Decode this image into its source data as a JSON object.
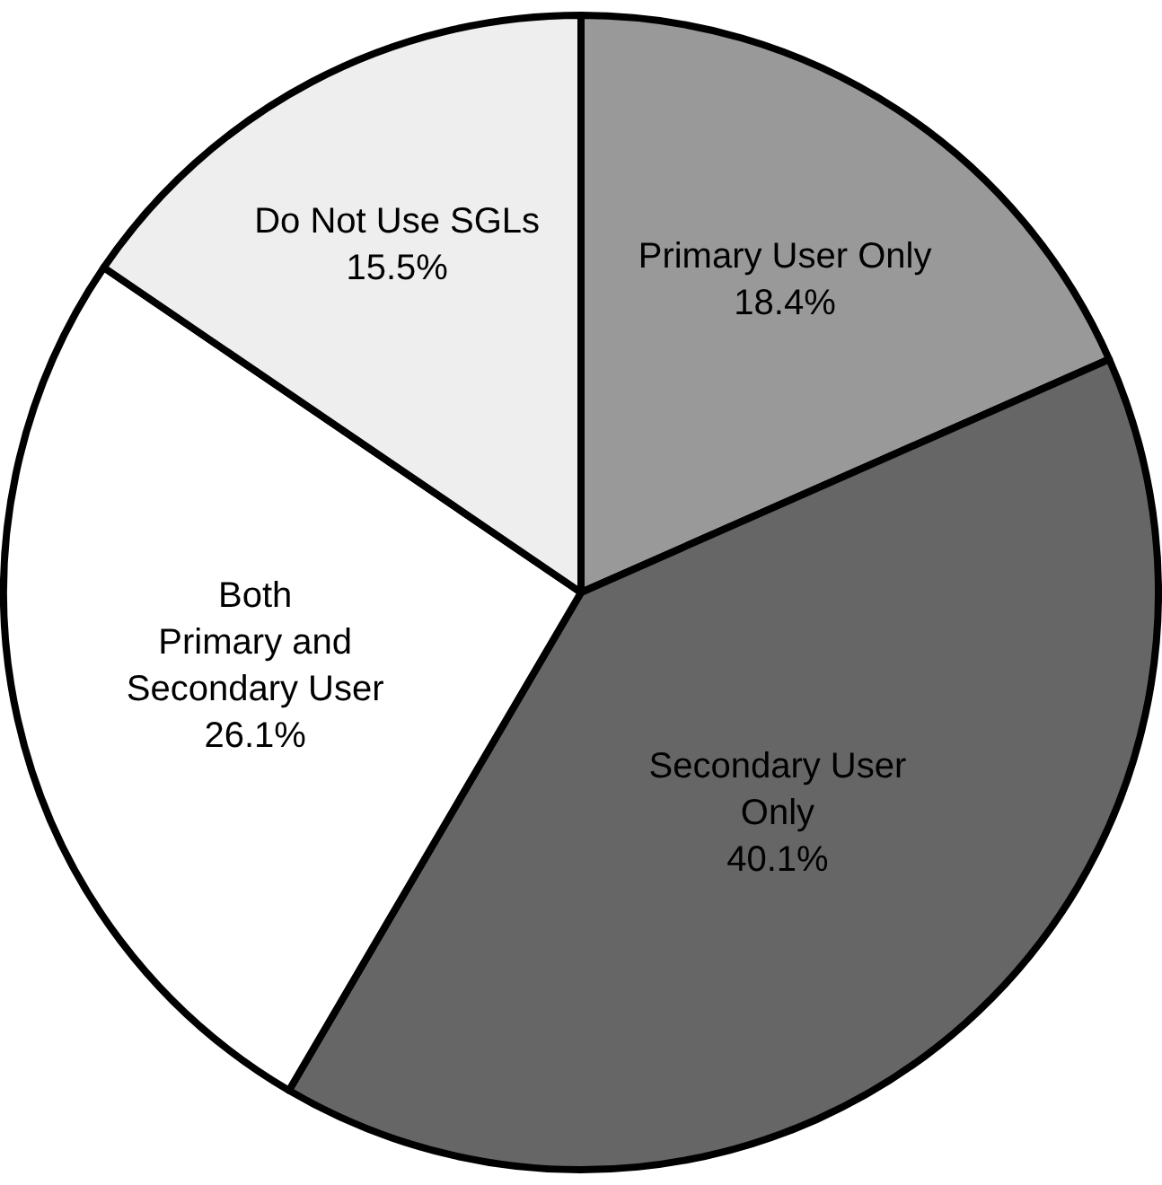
{
  "chart_data": {
    "type": "pie",
    "categories": [
      "Primary User Only",
      "Secondary User\nOnly",
      "Both\nPrimary and\nSecondary User",
      "Do Not Use SGLs"
    ],
    "values": [
      18.4,
      40.1,
      26.1,
      15.5
    ],
    "colors": [
      "#999999",
      "#666666",
      "#ffffff",
      "#eeeeee"
    ],
    "value_labels": [
      "18.4%",
      "40.1%",
      "26.1%",
      "15.5%"
    ],
    "legend": false
  }
}
